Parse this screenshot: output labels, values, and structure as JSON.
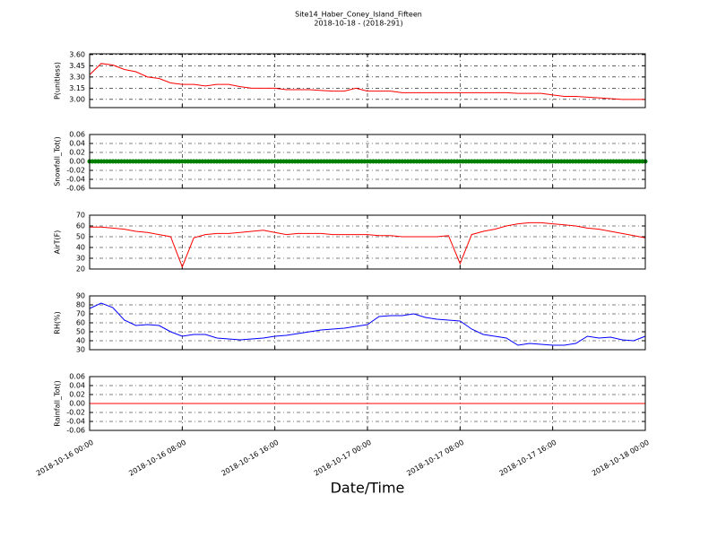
{
  "chart_data": [
    {
      "type": "line",
      "title": "Site14_Haber_Coney_Island_Fifteen",
      "subtitle": "2018-10-18 - (2018-291)",
      "ylabel": "P(unitless)",
      "x": [
        "2018-10-16 00:00",
        "2018-10-16 01:00",
        "2018-10-16 02:00",
        "2018-10-16 03:00",
        "2018-10-16 04:00",
        "2018-10-16 05:00",
        "2018-10-16 06:00",
        "2018-10-16 07:00",
        "2018-10-16 08:00",
        "2018-10-16 09:00",
        "2018-10-16 10:00",
        "2018-10-16 11:00",
        "2018-10-16 12:00",
        "2018-10-16 13:00",
        "2018-10-16 14:00",
        "2018-10-16 15:00",
        "2018-10-16 16:00",
        "2018-10-16 17:00",
        "2018-10-16 18:00",
        "2018-10-16 19:00",
        "2018-10-16 20:00",
        "2018-10-16 21:00",
        "2018-10-16 22:00",
        "2018-10-16 23:00",
        "2018-10-17 00:00",
        "2018-10-17 01:00",
        "2018-10-17 02:00",
        "2018-10-17 03:00",
        "2018-10-17 04:00",
        "2018-10-17 05:00",
        "2018-10-17 06:00",
        "2018-10-17 07:00",
        "2018-10-17 08:00",
        "2018-10-17 09:00",
        "2018-10-17 10:00",
        "2018-10-17 11:00",
        "2018-10-17 12:00",
        "2018-10-17 13:00",
        "2018-10-17 14:00",
        "2018-10-17 15:00",
        "2018-10-17 16:00",
        "2018-10-17 17:00",
        "2018-10-17 18:00",
        "2018-10-17 19:00",
        "2018-10-17 20:00",
        "2018-10-17 21:00",
        "2018-10-17 22:00",
        "2018-10-17 23:00",
        "2018-10-18 00:00"
      ],
      "series": [
        {
          "color": "#ff0000",
          "values": [
            3.33,
            3.48,
            3.46,
            3.4,
            3.37,
            3.3,
            3.28,
            3.22,
            3.2,
            3.2,
            3.18,
            3.2,
            3.2,
            3.17,
            3.15,
            3.15,
            3.15,
            3.13,
            3.13,
            3.13,
            3.12,
            3.11,
            3.11,
            3.15,
            3.11,
            3.11,
            3.11,
            3.09,
            3.09,
            3.09,
            3.09,
            3.09,
            3.09,
            3.09,
            3.09,
            3.09,
            3.09,
            3.08,
            3.08,
            3.08,
            3.06,
            3.04,
            3.04,
            3.03,
            3.02,
            3.01,
            3.0,
            3.0,
            3.0
          ]
        }
      ],
      "xlim": [
        "2018-10-16 00:00",
        "2018-10-18 00:00"
      ],
      "xticks": [
        "2018-10-16 00:00",
        "2018-10-16 08:00",
        "2018-10-16 16:00",
        "2018-10-17 00:00",
        "2018-10-17 08:00",
        "2018-10-17 16:00",
        "2018-10-18 00:00"
      ],
      "ylim": [
        2.89,
        3.61
      ],
      "yticks": [
        {
          "value": 3.0,
          "label": "3.00"
        },
        3.15,
        {
          "value": 3.3,
          "label": "3.30"
        },
        3.45,
        {
          "value": 3.6,
          "label": "3.60"
        }
      ],
      "grid": true
    },
    {
      "type": "line",
      "ylabel": "Snowfall_Tot()",
      "markers": true,
      "x": [
        "2018-10-16 00:00",
        "2018-10-16 01:00",
        "2018-10-16 02:00",
        "2018-10-16 03:00",
        "2018-10-16 04:00",
        "2018-10-16 05:00",
        "2018-10-16 06:00",
        "2018-10-16 07:00",
        "2018-10-16 08:00",
        "2018-10-16 09:00",
        "2018-10-16 10:00",
        "2018-10-16 11:00",
        "2018-10-16 12:00",
        "2018-10-16 13:00",
        "2018-10-16 14:00",
        "2018-10-16 15:00",
        "2018-10-16 16:00",
        "2018-10-16 17:00",
        "2018-10-16 18:00",
        "2018-10-16 19:00",
        "2018-10-16 20:00",
        "2018-10-16 21:00",
        "2018-10-16 22:00",
        "2018-10-16 23:00",
        "2018-10-17 00:00",
        "2018-10-17 01:00",
        "2018-10-17 02:00",
        "2018-10-17 03:00",
        "2018-10-17 04:00",
        "2018-10-17 05:00",
        "2018-10-17 06:00",
        "2018-10-17 07:00",
        "2018-10-17 08:00",
        "2018-10-17 09:00",
        "2018-10-17 10:00",
        "2018-10-17 11:00",
        "2018-10-17 12:00",
        "2018-10-17 13:00",
        "2018-10-17 14:00",
        "2018-10-17 15:00",
        "2018-10-17 16:00",
        "2018-10-17 17:00",
        "2018-10-17 18:00",
        "2018-10-17 19:00",
        "2018-10-17 20:00",
        "2018-10-17 21:00",
        "2018-10-17 22:00",
        "2018-10-17 23:00",
        "2018-10-18 00:00"
      ],
      "series": [
        {
          "color": "#008000",
          "values": [
            0,
            0,
            0,
            0,
            0,
            0,
            0,
            0,
            0,
            0,
            0,
            0,
            0,
            0,
            0,
            0,
            0,
            0,
            0,
            0,
            0,
            0,
            0,
            0,
            0,
            0,
            0,
            0,
            0,
            0,
            0,
            0,
            0,
            0,
            0,
            0,
            0,
            0,
            0,
            0,
            0,
            0,
            0,
            0,
            0,
            0,
            0,
            0,
            0
          ]
        }
      ],
      "xlim": [
        "2018-10-16 00:00",
        "2018-10-18 00:00"
      ],
      "xticks": [
        "2018-10-16 00:00",
        "2018-10-16 08:00",
        "2018-10-16 16:00",
        "2018-10-17 00:00",
        "2018-10-17 08:00",
        "2018-10-17 16:00",
        "2018-10-18 00:00"
      ],
      "ylim": [
        -0.06,
        0.06
      ],
      "yticks": [
        -0.06,
        -0.04,
        -0.02,
        {
          "value": 0,
          "label": "0.00"
        },
        0.02,
        0.04,
        0.06
      ],
      "grid": true
    },
    {
      "type": "line",
      "ylabel": "AirT(F)",
      "x": [
        "2018-10-16 00:00",
        "2018-10-16 01:00",
        "2018-10-16 02:00",
        "2018-10-16 03:00",
        "2018-10-16 04:00",
        "2018-10-16 05:00",
        "2018-10-16 06:00",
        "2018-10-16 07:00",
        "2018-10-16 08:00",
        "2018-10-16 09:00",
        "2018-10-16 10:00",
        "2018-10-16 11:00",
        "2018-10-16 12:00",
        "2018-10-16 13:00",
        "2018-10-16 14:00",
        "2018-10-16 15:00",
        "2018-10-16 16:00",
        "2018-10-16 17:00",
        "2018-10-16 18:00",
        "2018-10-16 19:00",
        "2018-10-16 20:00",
        "2018-10-16 21:00",
        "2018-10-16 22:00",
        "2018-10-16 23:00",
        "2018-10-17 00:00",
        "2018-10-17 01:00",
        "2018-10-17 02:00",
        "2018-10-17 03:00",
        "2018-10-17 04:00",
        "2018-10-17 05:00",
        "2018-10-17 06:00",
        "2018-10-17 07:00",
        "2018-10-17 08:00",
        "2018-10-17 09:00",
        "2018-10-17 10:00",
        "2018-10-17 11:00",
        "2018-10-17 12:00",
        "2018-10-17 13:00",
        "2018-10-17 14:00",
        "2018-10-17 15:00",
        "2018-10-17 16:00",
        "2018-10-17 17:00",
        "2018-10-17 18:00",
        "2018-10-17 19:00",
        "2018-10-17 20:00",
        "2018-10-17 21:00",
        "2018-10-17 22:00",
        "2018-10-17 23:00",
        "2018-10-18 00:00"
      ],
      "series": [
        {
          "color": "#ff0000",
          "values": [
            59,
            59,
            58,
            57,
            55,
            54,
            52,
            50,
            22,
            49,
            52,
            53,
            53,
            54,
            55,
            56,
            54,
            52,
            53,
            53,
            53,
            52,
            52,
            52,
            52,
            51,
            51,
            50,
            50,
            50,
            50,
            51,
            25,
            52,
            55,
            57,
            60,
            62,
            63,
            63,
            62,
            61,
            60,
            58,
            57,
            55,
            53,
            51,
            49
          ]
        }
      ],
      "xlim": [
        "2018-10-16 00:00",
        "2018-10-18 00:00"
      ],
      "xticks": [
        "2018-10-16 00:00",
        "2018-10-16 08:00",
        "2018-10-16 16:00",
        "2018-10-17 00:00",
        "2018-10-17 08:00",
        "2018-10-17 16:00",
        "2018-10-18 00:00"
      ],
      "ylim": [
        20,
        70
      ],
      "yticks": [
        20,
        30,
        40,
        50,
        60,
        70
      ],
      "grid": true
    },
    {
      "type": "line",
      "ylabel": "RH(%)",
      "x": [
        "2018-10-16 00:00",
        "2018-10-16 01:00",
        "2018-10-16 02:00",
        "2018-10-16 03:00",
        "2018-10-16 04:00",
        "2018-10-16 05:00",
        "2018-10-16 06:00",
        "2018-10-16 07:00",
        "2018-10-16 08:00",
        "2018-10-16 09:00",
        "2018-10-16 10:00",
        "2018-10-16 11:00",
        "2018-10-16 12:00",
        "2018-10-16 13:00",
        "2018-10-16 14:00",
        "2018-10-16 15:00",
        "2018-10-16 16:00",
        "2018-10-16 17:00",
        "2018-10-16 18:00",
        "2018-10-16 19:00",
        "2018-10-16 20:00",
        "2018-10-16 21:00",
        "2018-10-16 22:00",
        "2018-10-16 23:00",
        "2018-10-17 00:00",
        "2018-10-17 01:00",
        "2018-10-17 02:00",
        "2018-10-17 03:00",
        "2018-10-17 04:00",
        "2018-10-17 05:00",
        "2018-10-17 06:00",
        "2018-10-17 07:00",
        "2018-10-17 08:00",
        "2018-10-17 09:00",
        "2018-10-17 10:00",
        "2018-10-17 11:00",
        "2018-10-17 12:00",
        "2018-10-17 13:00",
        "2018-10-17 14:00",
        "2018-10-17 15:00",
        "2018-10-17 16:00",
        "2018-10-17 17:00",
        "2018-10-17 18:00",
        "2018-10-17 19:00",
        "2018-10-17 20:00",
        "2018-10-17 21:00",
        "2018-10-17 22:00",
        "2018-10-17 23:00",
        "2018-10-18 00:00"
      ],
      "series": [
        {
          "color": "#0000ff",
          "values": [
            76,
            82,
            77,
            63,
            57,
            58,
            57,
            50,
            45,
            47,
            47,
            43,
            42,
            41,
            42,
            43,
            45,
            46,
            48,
            50,
            52,
            53,
            54,
            56,
            58,
            67,
            68,
            68,
            70,
            66,
            64,
            63,
            62,
            53,
            47,
            45,
            43,
            35,
            37,
            36,
            35,
            35,
            37,
            45,
            43,
            44,
            41,
            40,
            45
          ]
        }
      ],
      "xlim": [
        "2018-10-16 00:00",
        "2018-10-18 00:00"
      ],
      "xticks": [
        "2018-10-16 00:00",
        "2018-10-16 08:00",
        "2018-10-16 16:00",
        "2018-10-17 00:00",
        "2018-10-17 08:00",
        "2018-10-17 16:00",
        "2018-10-18 00:00"
      ],
      "ylim": [
        30,
        90
      ],
      "yticks": [
        30,
        40,
        50,
        60,
        70,
        80,
        90
      ],
      "grid": true
    },
    {
      "type": "line",
      "ylabel": "Rainfall_Tot()",
      "xlabel": "Date/Time",
      "x": [
        "2018-10-16 00:00",
        "2018-10-16 01:00",
        "2018-10-16 02:00",
        "2018-10-16 03:00",
        "2018-10-16 04:00",
        "2018-10-16 05:00",
        "2018-10-16 06:00",
        "2018-10-16 07:00",
        "2018-10-16 08:00",
        "2018-10-16 09:00",
        "2018-10-16 10:00",
        "2018-10-16 11:00",
        "2018-10-16 12:00",
        "2018-10-16 13:00",
        "2018-10-16 14:00",
        "2018-10-16 15:00",
        "2018-10-16 16:00",
        "2018-10-16 17:00",
        "2018-10-16 18:00",
        "2018-10-16 19:00",
        "2018-10-16 20:00",
        "2018-10-16 21:00",
        "2018-10-16 22:00",
        "2018-10-16 23:00",
        "2018-10-17 00:00",
        "2018-10-17 01:00",
        "2018-10-17 02:00",
        "2018-10-17 03:00",
        "2018-10-17 04:00",
        "2018-10-17 05:00",
        "2018-10-17 06:00",
        "2018-10-17 07:00",
        "2018-10-17 08:00",
        "2018-10-17 09:00",
        "2018-10-17 10:00",
        "2018-10-17 11:00",
        "2018-10-17 12:00",
        "2018-10-17 13:00",
        "2018-10-17 14:00",
        "2018-10-17 15:00",
        "2018-10-17 16:00",
        "2018-10-17 17:00",
        "2018-10-17 18:00",
        "2018-10-17 19:00",
        "2018-10-17 20:00",
        "2018-10-17 21:00",
        "2018-10-17 22:00",
        "2018-10-17 23:00",
        "2018-10-18 00:00"
      ],
      "series": [
        {
          "color": "#ff0000",
          "values": [
            0,
            0,
            0,
            0,
            0,
            0,
            0,
            0,
            0,
            0,
            0,
            0,
            0,
            0,
            0,
            0,
            0,
            0,
            0,
            0,
            0,
            0,
            0,
            0,
            0,
            0,
            0,
            0,
            0,
            0,
            0,
            0,
            0,
            0,
            0,
            0,
            0,
            0,
            0,
            0,
            0,
            0,
            0,
            0,
            0,
            0,
            0,
            0,
            0
          ]
        }
      ],
      "xlim": [
        "2018-10-16 00:00",
        "2018-10-18 00:00"
      ],
      "xticks": [
        "2018-10-16 00:00",
        "2018-10-16 08:00",
        "2018-10-16 16:00",
        "2018-10-17 00:00",
        "2018-10-17 08:00",
        "2018-10-17 16:00",
        "2018-10-18 00:00"
      ],
      "show_xtick_labels": true,
      "ylim": [
        -0.06,
        0.06
      ],
      "yticks": [
        -0.06,
        -0.04,
        -0.02,
        {
          "value": 0,
          "label": "0.00"
        },
        0.02,
        0.04,
        0.06
      ],
      "grid": true
    }
  ]
}
